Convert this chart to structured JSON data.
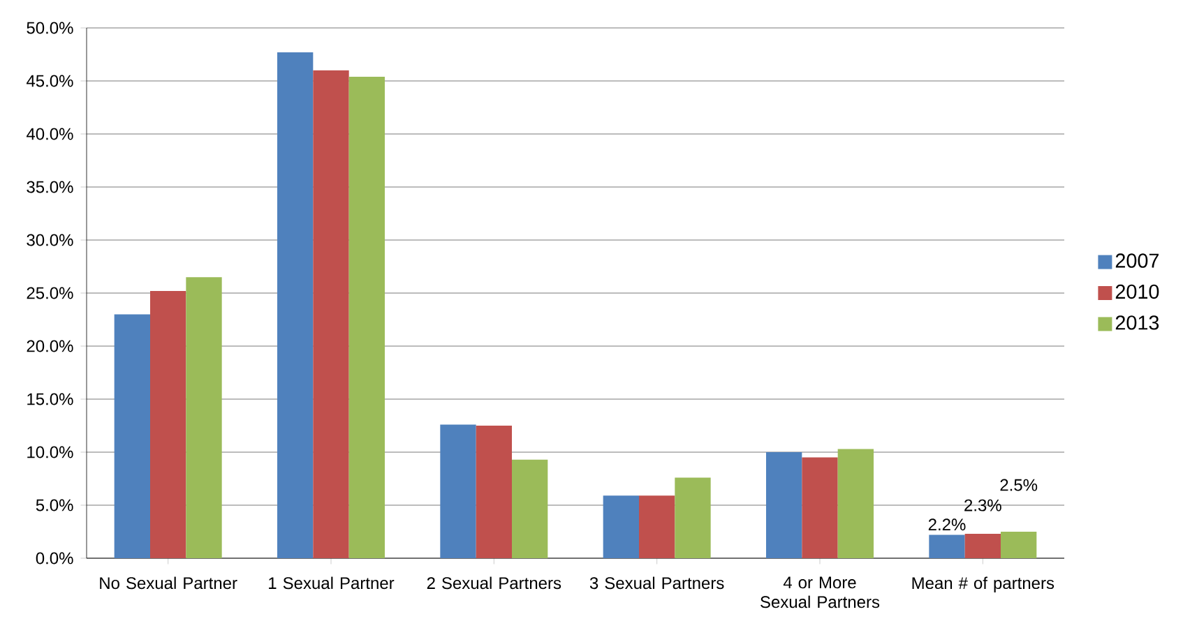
{
  "chart_data": {
    "type": "bar",
    "categories": [
      "No Sexual Partner",
      "1 Sexual Partner",
      "2 Sexual Partners",
      "3 Sexual Partners",
      "4 or More Sexual Partners",
      "Mean # of partners"
    ],
    "series": [
      {
        "name": "2007",
        "color": "#4f81bd",
        "values": [
          23.0,
          47.7,
          12.6,
          5.9,
          10.0,
          2.2
        ],
        "value_labels": [
          null,
          null,
          null,
          null,
          null,
          "2.2%"
        ]
      },
      {
        "name": "2010",
        "color": "#c0504d",
        "values": [
          25.2,
          46.0,
          12.5,
          5.9,
          9.5,
          2.3
        ],
        "value_labels": [
          null,
          null,
          null,
          null,
          null,
          "2.3%"
        ]
      },
      {
        "name": "2013",
        "color": "#9bbb59",
        "values": [
          26.5,
          45.4,
          9.3,
          7.6,
          10.3,
          2.5
        ],
        "value_labels": [
          null,
          null,
          null,
          null,
          null,
          "2.5%"
        ]
      }
    ],
    "ylim": [
      0,
      50
    ],
    "yticks": [
      {
        "value": 0,
        "label": "0.0%"
      },
      {
        "value": 5,
        "label": "5.0%"
      },
      {
        "value": 10,
        "label": "10.0%"
      },
      {
        "value": 15,
        "label": "15.0%"
      },
      {
        "value": 20,
        "label": "20.0%"
      },
      {
        "value": 25,
        "label": "25.0%"
      },
      {
        "value": 30,
        "label": "30.0%"
      },
      {
        "value": 35,
        "label": "35.0%"
      },
      {
        "value": 40,
        "label": "40.0%"
      },
      {
        "value": 45,
        "label": "45.0%"
      },
      {
        "value": 50,
        "label": "50.0%"
      }
    ],
    "grid": "y",
    "legend": "right"
  }
}
